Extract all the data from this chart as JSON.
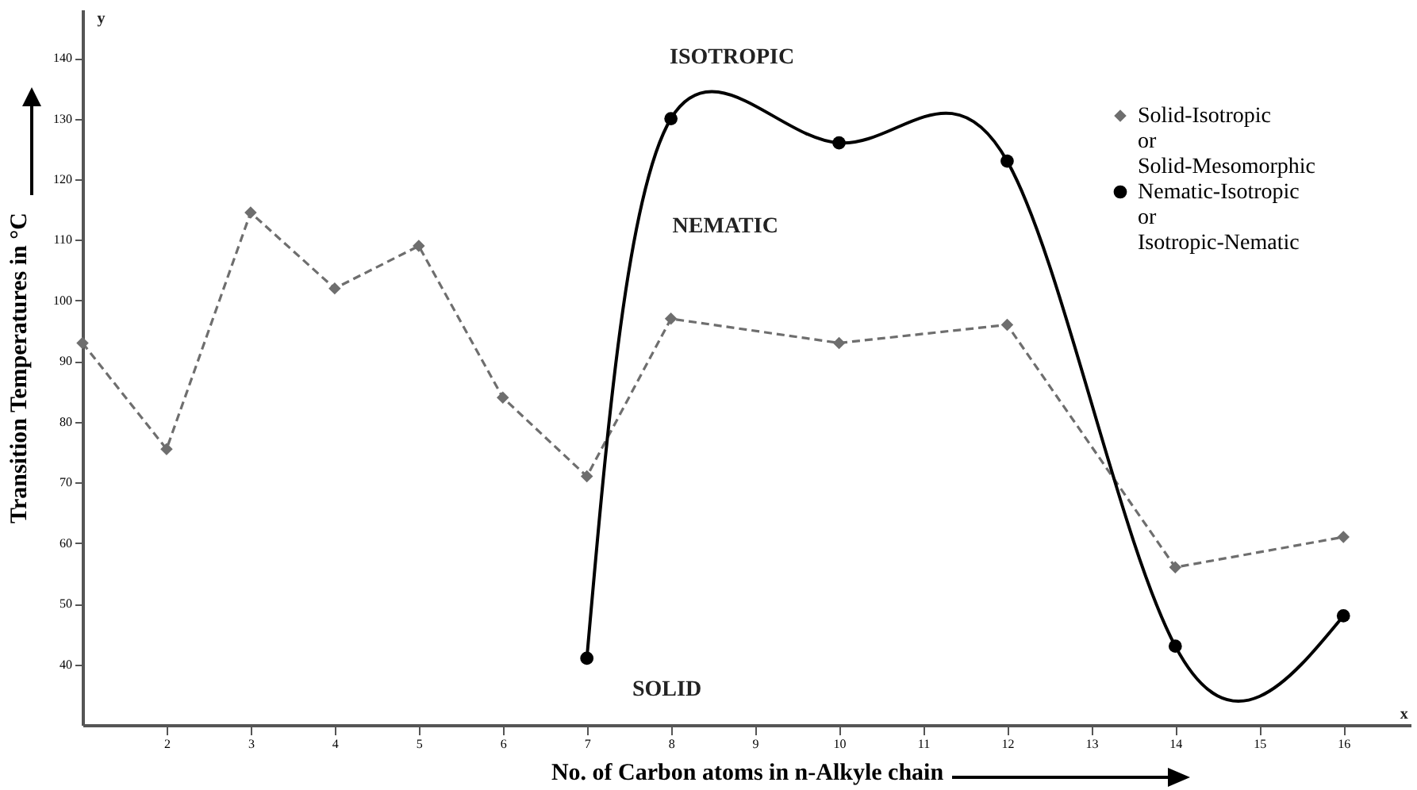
{
  "chart_data": {
    "type": "line",
    "xlabel": "No. of Carbon atoms in n-Alkyle chain",
    "ylabel": "Transition Temperatures in °C",
    "xlim": [
      1,
      16.8
    ],
    "xticks": [
      2,
      3,
      4,
      5,
      6,
      7,
      8,
      9,
      10,
      11,
      12,
      13,
      14,
      15,
      16
    ],
    "ylim": [
      30,
      148
    ],
    "yticks": [
      40,
      50,
      60,
      70,
      80,
      90,
      100,
      110,
      120,
      130,
      140
    ],
    "grid": false,
    "legend": "top right",
    "series": [
      {
        "name": "Solid-Isotropic or Solid-Mesomorphic",
        "color": "#6e6e6e",
        "marker": "diamond",
        "line_style": "dashed",
        "x": [
          1,
          2,
          3,
          4,
          5,
          6,
          7,
          8,
          10,
          12,
          14,
          16
        ],
        "values": [
          93,
          75.5,
          114.5,
          102,
          109,
          84,
          71,
          97,
          93,
          96,
          56,
          61
        ]
      },
      {
        "name": "Nematic-Isotropic or Isotropic-Nematic",
        "color": "#000000",
        "marker": "circle",
        "line_style": "solid",
        "x": [
          7,
          8,
          10,
          12,
          14,
          16
        ],
        "values": [
          41,
          130,
          126,
          123,
          43,
          48
        ]
      }
    ],
    "annotations": [
      "ISOTROPIC",
      "NEMATIC",
      "SOLID",
      "y",
      "x"
    ]
  }
}
